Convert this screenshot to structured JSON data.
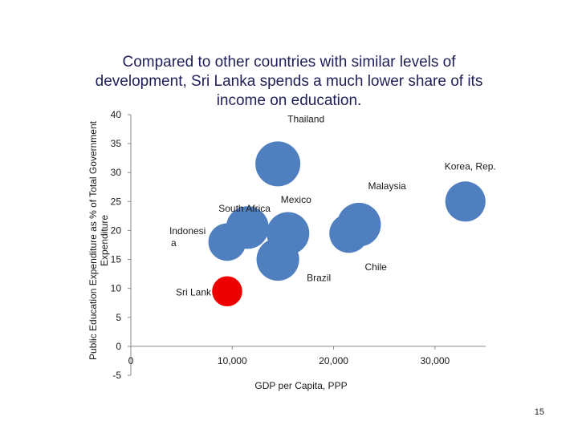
{
  "page": {
    "number": "15"
  },
  "chart_data": {
    "type": "scatter",
    "subtype": "bubble",
    "title": "Compared to other countries with similar levels of development, Sri Lanka spends a much lower share of its income on education.",
    "xlabel": "GDP per Capita, PPP",
    "ylabel": "Public Education Expenditure as % of Total Government Expenditure",
    "xlim": [
      0,
      35000
    ],
    "ylim": [
      -5,
      40
    ],
    "x_ticks": [
      0,
      10000,
      20000,
      30000
    ],
    "x_tick_labels": [
      "0",
      "10,000",
      "20,000",
      "30,000"
    ],
    "y_ticks": [
      -5,
      0,
      5,
      10,
      15,
      20,
      25,
      30,
      35,
      40
    ],
    "y_tick_labels": [
      "-5",
      "0",
      "5",
      "10",
      "15",
      "20",
      "25",
      "30",
      "35",
      "40"
    ],
    "grid": false,
    "legend": "none",
    "colors": {
      "bubble": "#4f7fbf",
      "highlight": "#ee0000"
    },
    "points": [
      {
        "label": "Thailand",
        "x": 14500,
        "y": 31.5,
        "size": 1.0,
        "color": "#4f7fbf",
        "label_text": "Thailand"
      },
      {
        "label": "Korea, Rep.",
        "x": 33000,
        "y": 25,
        "size": 0.8,
        "color": "#4f7fbf",
        "label_text": "Korea, Rep."
      },
      {
        "label": "Malaysia",
        "x": 22500,
        "y": 21,
        "size": 0.95,
        "color": "#4f7fbf",
        "label_text": "Malaysia"
      },
      {
        "label": "Mexico",
        "x": 15500,
        "y": 19.5,
        "size": 0.9,
        "color": "#4f7fbf",
        "label_text": "Mexico"
      },
      {
        "label": "South Africa",
        "x": 11500,
        "y": 20.5,
        "size": 0.9,
        "color": "#4f7fbf",
        "label_text": "South Africa"
      },
      {
        "label": "Indonesia",
        "x": 9500,
        "y": 18,
        "size": 0.7,
        "color": "#4f7fbf",
        "label_text": "Indonesi a"
      },
      {
        "label": "Chile",
        "x": 21500,
        "y": 19.5,
        "size": 0.75,
        "color": "#4f7fbf",
        "label_text": "Chile"
      },
      {
        "label": "Brazil",
        "x": 14500,
        "y": 15,
        "size": 0.9,
        "color": "#4f7fbf",
        "label_text": "Brazil"
      },
      {
        "label": "Sri Lanka",
        "x": 9500,
        "y": 9.5,
        "size": 0.45,
        "color": "#ee0000",
        "label_text": "Sri Lank"
      }
    ]
  }
}
